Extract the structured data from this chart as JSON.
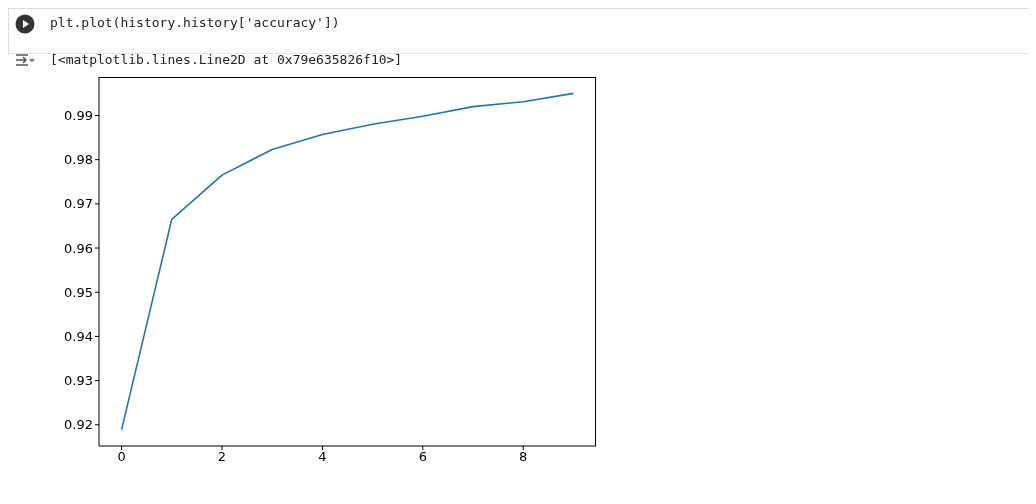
{
  "chart_data": {
    "type": "line",
    "annotations": [
      "plt.plot(history.history['accuracy'])",
      "[<matplotlib.lines.Line2D at 0x79e635826f10>]"
    ],
    "x": [
      0,
      1,
      2,
      3,
      4,
      5,
      6,
      7,
      8,
      9
    ],
    "series": [
      {
        "color": "#1f77b4",
        "values": [
          0.9189,
          0.9665,
          0.9765,
          0.9823,
          0.9857,
          0.988,
          0.9898,
          0.992,
          0.9931,
          0.995
        ]
      }
    ],
    "xlim": [
      -0.45,
      9.45
    ],
    "xticks": [
      0,
      2,
      4,
      6,
      8
    ],
    "ylim": [
      0.9152,
      0.9987
    ],
    "yticks": [
      0.92,
      0.93,
      0.94,
      0.95,
      0.96,
      0.97,
      0.98,
      0.99
    ],
    "grid": false,
    "legend": false,
    "marker": "none",
    "line_style": "solid"
  }
}
